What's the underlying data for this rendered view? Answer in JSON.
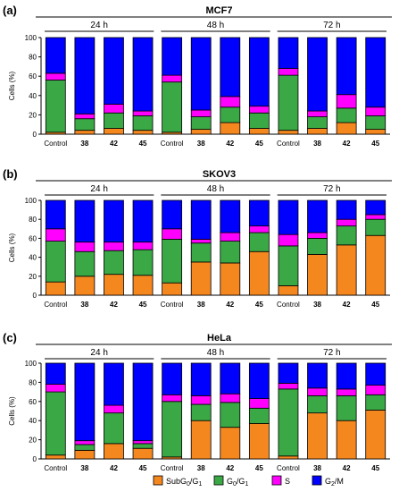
{
  "colors": {
    "subg0g1": "#f5871f",
    "g0g1": "#3aa845",
    "s": "#ff00ff",
    "g2m": "#0000ff"
  },
  "legend": [
    {
      "key": "subg0g1",
      "label": "SubG",
      "sub1": "0",
      "mid": "/G",
      "sub2": "1"
    },
    {
      "key": "g0g1",
      "label": "G",
      "sub1": "0",
      "mid": "/G",
      "sub2": "1"
    },
    {
      "key": "s",
      "label": "S",
      "sub1": "",
      "mid": "",
      "sub2": ""
    },
    {
      "key": "g2m",
      "label": "G",
      "sub1": "2",
      "mid": "/M",
      "sub2": ""
    }
  ],
  "chart_data": [
    {
      "type": "bar",
      "stacked": true,
      "panel": "(a)",
      "title": "MCF7",
      "ylabel": "Cells (%)",
      "ylim": [
        0,
        100
      ],
      "yticks": [
        0,
        20,
        40,
        60,
        80,
        100
      ],
      "groups": [
        "24 h",
        "48 h",
        "72 h"
      ],
      "categories": [
        "Control",
        "38",
        "42",
        "45",
        "Control",
        "38",
        "42",
        "45",
        "Control",
        "38",
        "42",
        "45"
      ],
      "series": [
        {
          "key": "subg0g1",
          "values": [
            2,
            4,
            6,
            4,
            2,
            5,
            12,
            6,
            4,
            6,
            12,
            5
          ]
        },
        {
          "key": "g0g1",
          "values": [
            54,
            12,
            16,
            15,
            52,
            13,
            16,
            16,
            57,
            12,
            15,
            14
          ]
        },
        {
          "key": "s",
          "values": [
            7,
            5,
            9,
            5,
            7,
            7,
            11,
            7,
            7,
            6,
            14,
            9
          ]
        },
        {
          "key": "g2m",
          "values": [
            37,
            79,
            69,
            76,
            39,
            75,
            61,
            71,
            32,
            76,
            59,
            72
          ]
        }
      ]
    },
    {
      "type": "bar",
      "stacked": true,
      "panel": "(b)",
      "title": "SKOV3",
      "ylabel": "Cells (%)",
      "ylim": [
        0,
        100
      ],
      "yticks": [
        0,
        20,
        40,
        60,
        80,
        100
      ],
      "groups": [
        "24 h",
        "48 h",
        "72 h"
      ],
      "categories": [
        "Control",
        "38",
        "42",
        "45",
        "Control",
        "38",
        "42",
        "45",
        "Control",
        "38",
        "42",
        "45"
      ],
      "series": [
        {
          "key": "subg0g1",
          "values": [
            14,
            20,
            22,
            21,
            13,
            35,
            34,
            46,
            10,
            43,
            53,
            63
          ]
        },
        {
          "key": "g0g1",
          "values": [
            43,
            26,
            25,
            27,
            46,
            20,
            23,
            20,
            42,
            17,
            20,
            17
          ]
        },
        {
          "key": "s",
          "values": [
            13,
            10,
            9,
            8,
            11,
            4,
            9,
            7,
            12,
            6,
            7,
            5
          ]
        },
        {
          "key": "g2m",
          "values": [
            30,
            44,
            44,
            44,
            30,
            41,
            34,
            27,
            36,
            34,
            20,
            15
          ]
        }
      ]
    },
    {
      "type": "bar",
      "stacked": true,
      "panel": "(c)",
      "title": "HeLa",
      "ylabel": "Cells (%)",
      "ylim": [
        0,
        100
      ],
      "yticks": [
        0,
        20,
        40,
        60,
        80,
        100
      ],
      "groups": [
        "24 h",
        "48 h",
        "72 h"
      ],
      "categories": [
        "Control",
        "38",
        "42",
        "45",
        "Control",
        "38",
        "42",
        "45",
        "Control",
        "38",
        "42",
        "45"
      ],
      "series": [
        {
          "key": "subg0g1",
          "values": [
            4,
            9,
            16,
            11,
            2,
            40,
            33,
            37,
            3,
            48,
            40,
            51
          ]
        },
        {
          "key": "g0g1",
          "values": [
            66,
            6,
            32,
            5,
            58,
            17,
            26,
            16,
            70,
            18,
            26,
            16
          ]
        },
        {
          "key": "s",
          "values": [
            8,
            4,
            8,
            3,
            7,
            9,
            9,
            10,
            6,
            8,
            7,
            10
          ]
        },
        {
          "key": "g2m",
          "values": [
            22,
            81,
            44,
            81,
            33,
            34,
            32,
            37,
            21,
            26,
            27,
            23
          ]
        }
      ]
    }
  ]
}
